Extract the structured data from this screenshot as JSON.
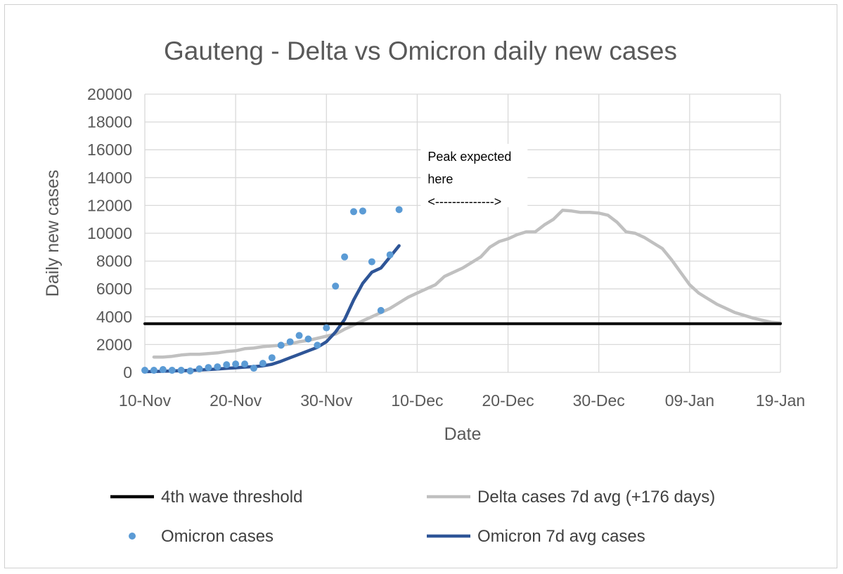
{
  "chart_data": {
    "type": "line",
    "title": "Gauteng -  Delta vs Omicron daily new cases",
    "xlabel": "Date",
    "ylabel": "Daily new cases",
    "ylim": [
      0,
      20000
    ],
    "yticks": [
      0,
      2000,
      4000,
      6000,
      8000,
      10000,
      12000,
      14000,
      16000,
      18000,
      20000
    ],
    "xlim": [
      "2021-11-10",
      "2022-01-19"
    ],
    "xticks": [
      {
        "date": "2021-11-10",
        "label": "10-Nov"
      },
      {
        "date": "2021-11-20",
        "label": "20-Nov"
      },
      {
        "date": "2021-11-30",
        "label": "30-Nov"
      },
      {
        "date": "2021-12-10",
        "label": "10-Dec"
      },
      {
        "date": "2021-12-20",
        "label": "20-Dec"
      },
      {
        "date": "2021-12-30",
        "label": "30-Dec"
      },
      {
        "date": "2022-01-09",
        "label": "09-Jan"
      },
      {
        "date": "2022-01-19",
        "label": "19-Jan"
      }
    ],
    "grid": true,
    "legend_position": "bottom",
    "annotation": {
      "lines": [
        "Peak expected",
        "here",
        "<-------------->"
      ],
      "position_date": "2021-12-11",
      "position_value": 14000
    },
    "series": [
      {
        "name": "4th wave threshold",
        "style": "line",
        "color": "#000000",
        "x": [
          "2021-11-10",
          "2022-01-19"
        ],
        "y": [
          3500,
          3500
        ]
      },
      {
        "name": "Delta cases 7d avg (+176 days)",
        "style": "line",
        "color": "#c0c0c0",
        "x": [
          "2021-11-11",
          "2021-11-12",
          "2021-11-13",
          "2021-11-14",
          "2021-11-15",
          "2021-11-16",
          "2021-11-17",
          "2021-11-18",
          "2021-11-19",
          "2021-11-20",
          "2021-11-21",
          "2021-11-22",
          "2021-11-23",
          "2021-11-24",
          "2021-11-25",
          "2021-11-26",
          "2021-11-27",
          "2021-11-28",
          "2021-11-29",
          "2021-11-30",
          "2021-12-01",
          "2021-12-02",
          "2021-12-03",
          "2021-12-04",
          "2021-12-05",
          "2021-12-06",
          "2021-12-07",
          "2021-12-08",
          "2021-12-09",
          "2021-12-10",
          "2021-12-11",
          "2021-12-12",
          "2021-12-13",
          "2021-12-14",
          "2021-12-15",
          "2021-12-16",
          "2021-12-17",
          "2021-12-18",
          "2021-12-19",
          "2021-12-20",
          "2021-12-21",
          "2021-12-22",
          "2021-12-23",
          "2021-12-24",
          "2021-12-25",
          "2021-12-26",
          "2021-12-27",
          "2021-12-28",
          "2021-12-29",
          "2021-12-30",
          "2021-12-31",
          "2022-01-01",
          "2022-01-02",
          "2022-01-03",
          "2022-01-04",
          "2022-01-05",
          "2022-01-06",
          "2022-01-07",
          "2022-01-08",
          "2022-01-09",
          "2022-01-10",
          "2022-01-11",
          "2022-01-12",
          "2022-01-13",
          "2022-01-14",
          "2022-01-15",
          "2022-01-16",
          "2022-01-17",
          "2022-01-18",
          "2022-01-19"
        ],
        "y": [
          1100,
          1100,
          1150,
          1250,
          1300,
          1300,
          1350,
          1400,
          1500,
          1550,
          1700,
          1750,
          1850,
          1900,
          1950,
          2050,
          2200,
          2300,
          2450,
          2600,
          2750,
          3100,
          3400,
          3700,
          4000,
          4300,
          4600,
          5000,
          5400,
          5700,
          6000,
          6300,
          6900,
          7200,
          7500,
          7900,
          8300,
          9000,
          9400,
          9600,
          9900,
          10100,
          10100,
          10600,
          11000,
          11650,
          11600,
          11500,
          11500,
          11450,
          11300,
          10800,
          10100,
          10000,
          9700,
          9300,
          8900,
          8100,
          7200,
          6300,
          5700,
          5300,
          4900,
          4600,
          4300,
          4100,
          3900,
          3750,
          3600,
          3550
        ]
      },
      {
        "name": "Omicron cases",
        "style": "scatter",
        "color": "#5b9bd5",
        "x": [
          "2021-11-10",
          "2021-11-11",
          "2021-11-12",
          "2021-11-13",
          "2021-11-14",
          "2021-11-15",
          "2021-11-16",
          "2021-11-17",
          "2021-11-18",
          "2021-11-19",
          "2021-11-20",
          "2021-11-21",
          "2021-11-22",
          "2021-11-23",
          "2021-11-24",
          "2021-11-25",
          "2021-11-26",
          "2021-11-27",
          "2021-11-28",
          "2021-11-29",
          "2021-11-30",
          "2021-12-01",
          "2021-12-02",
          "2021-12-03",
          "2021-12-04",
          "2021-12-05",
          "2021-12-06",
          "2021-12-07",
          "2021-12-08"
        ],
        "y": [
          150,
          150,
          200,
          150,
          150,
          100,
          250,
          350,
          400,
          550,
          600,
          600,
          300,
          650,
          1050,
          1950,
          2200,
          2650,
          2400,
          1950,
          3200,
          6200,
          8300,
          11550,
          11600,
          7950,
          4450,
          8450,
          11700
        ]
      },
      {
        "name": "Omicron 7d avg cases",
        "style": "line",
        "color": "#2e5597",
        "x": [
          "2021-11-10",
          "2021-11-11",
          "2021-11-12",
          "2021-11-13",
          "2021-11-14",
          "2021-11-15",
          "2021-11-16",
          "2021-11-17",
          "2021-11-18",
          "2021-11-19",
          "2021-11-20",
          "2021-11-21",
          "2021-11-22",
          "2021-11-23",
          "2021-11-24",
          "2021-11-25",
          "2021-11-26",
          "2021-11-27",
          "2021-11-28",
          "2021-11-29",
          "2021-11-30",
          "2021-12-01",
          "2021-12-02",
          "2021-12-03",
          "2021-12-04",
          "2021-12-05",
          "2021-12-06",
          "2021-12-07",
          "2021-12-08"
        ],
        "y": [
          50,
          60,
          80,
          100,
          120,
          140,
          170,
          200,
          240,
          290,
          330,
          380,
          410,
          470,
          580,
          800,
          1050,
          1300,
          1550,
          1800,
          2200,
          2900,
          3800,
          5200,
          6400,
          7200,
          7500,
          8300,
          9100
        ]
      }
    ]
  }
}
